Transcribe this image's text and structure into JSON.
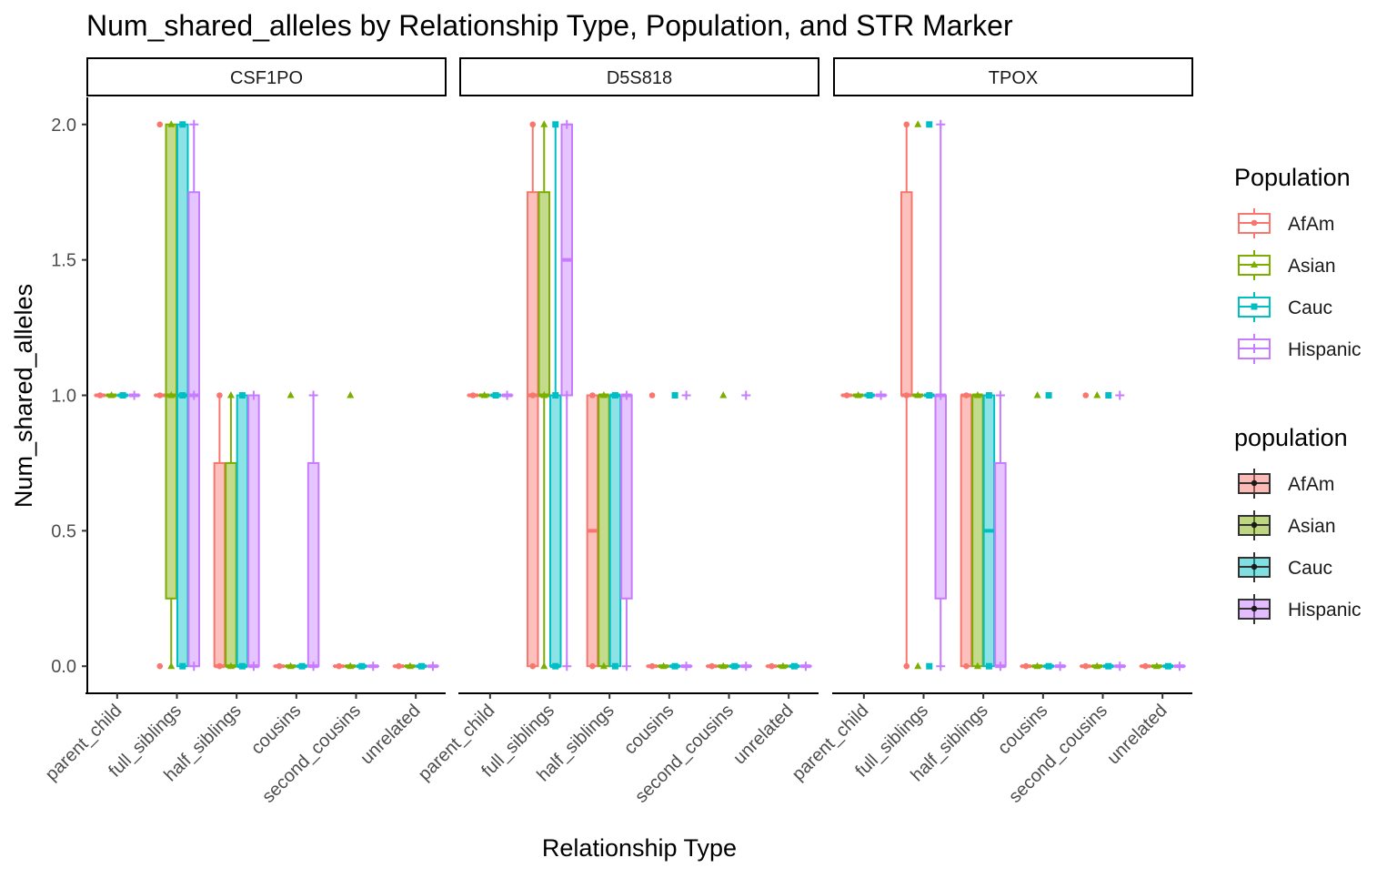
{
  "chart_data": {
    "type": "boxplot",
    "title": "Num_shared_alleles by Relationship Type, Population, and STR Marker",
    "xlabel": "Relationship Type",
    "ylabel": "Num_shared_alleles",
    "ylim": [
      -0.1,
      2.1
    ],
    "yticks": [
      0.0,
      0.5,
      1.0,
      1.5,
      2.0
    ],
    "ytick_labels": [
      "0.0",
      "0.5",
      "1.0",
      "1.5",
      "2.0"
    ],
    "categories": [
      "parent_child",
      "full_siblings",
      "half_siblings",
      "cousins",
      "second_cousins",
      "unrelated"
    ],
    "populations": [
      "AfAm",
      "Asian",
      "Cauc",
      "Hispanic"
    ],
    "colors": {
      "AfAm": "#F8766D",
      "Asian": "#7CAE00",
      "Cauc": "#00BFC4",
      "Hispanic": "#C77CFF"
    },
    "legend_position": "right",
    "legends": [
      {
        "title": "Population",
        "style": "outline",
        "items": [
          "AfAm",
          "Asian",
          "Cauc",
          "Hispanic"
        ]
      },
      {
        "title": "population",
        "style": "filled",
        "items": [
          "AfAm",
          "Asian",
          "Cauc",
          "Hispanic"
        ]
      }
    ],
    "panels": [
      {
        "marker": "CSF1PO",
        "boxes": {
          "parent_child": {
            "AfAm": {
              "q1": 1,
              "median": 1,
              "q3": 1,
              "lo": 1,
              "hi": 1,
              "points": [
                1
              ]
            },
            "Asian": {
              "q1": 1,
              "median": 1,
              "q3": 1,
              "lo": 1,
              "hi": 1,
              "points": [
                1
              ]
            },
            "Cauc": {
              "q1": 1,
              "median": 1,
              "q3": 1,
              "lo": 1,
              "hi": 1,
              "points": [
                1
              ]
            },
            "Hispanic": {
              "q1": 1,
              "median": 1,
              "q3": 1,
              "lo": 1,
              "hi": 1,
              "points": [
                1
              ]
            }
          },
          "full_siblings": {
            "AfAm": {
              "q1": 1,
              "median": 1,
              "q3": 1,
              "lo": 1,
              "hi": 1,
              "points": [
                0,
                1,
                2
              ]
            },
            "Asian": {
              "q1": 0.25,
              "median": 1,
              "q3": 2,
              "lo": 0,
              "hi": 2,
              "points": [
                0,
                1,
                2
              ]
            },
            "Cauc": {
              "q1": 0,
              "median": 1,
              "q3": 2,
              "lo": 0,
              "hi": 2,
              "points": [
                0,
                1,
                2
              ]
            },
            "Hispanic": {
              "q1": 0,
              "median": 1,
              "q3": 1.75,
              "lo": 0,
              "hi": 2,
              "points": [
                0,
                1,
                2
              ]
            }
          },
          "half_siblings": {
            "AfAm": {
              "q1": 0,
              "median": 0,
              "q3": 0.75,
              "lo": 0,
              "hi": 1,
              "points": [
                0,
                1
              ]
            },
            "Asian": {
              "q1": 0,
              "median": 0,
              "q3": 0.75,
              "lo": 0,
              "hi": 1,
              "points": [
                0,
                1
              ]
            },
            "Cauc": {
              "q1": 0,
              "median": 0,
              "q3": 1,
              "lo": 0,
              "hi": 1,
              "points": [
                0,
                1
              ]
            },
            "Hispanic": {
              "q1": 0,
              "median": 0,
              "q3": 1,
              "lo": 0,
              "hi": 1,
              "points": [
                0,
                1
              ]
            }
          },
          "cousins": {
            "AfAm": {
              "q1": 0,
              "median": 0,
              "q3": 0,
              "lo": 0,
              "hi": 0,
              "points": [
                0
              ]
            },
            "Asian": {
              "q1": 0,
              "median": 0,
              "q3": 0,
              "lo": 0,
              "hi": 0,
              "points": [
                0,
                1
              ]
            },
            "Cauc": {
              "q1": 0,
              "median": 0,
              "q3": 0,
              "lo": 0,
              "hi": 0,
              "points": [
                0
              ]
            },
            "Hispanic": {
              "q1": 0,
              "median": 0,
              "q3": 0.75,
              "lo": 0,
              "hi": 1,
              "points": [
                0,
                1
              ]
            }
          },
          "second_cousins": {
            "AfAm": {
              "q1": 0,
              "median": 0,
              "q3": 0,
              "lo": 0,
              "hi": 0,
              "points": [
                0
              ]
            },
            "Asian": {
              "q1": 0,
              "median": 0,
              "q3": 0,
              "lo": 0,
              "hi": 0,
              "points": [
                0,
                1
              ]
            },
            "Cauc": {
              "q1": 0,
              "median": 0,
              "q3": 0,
              "lo": 0,
              "hi": 0,
              "points": [
                0
              ]
            },
            "Hispanic": {
              "q1": 0,
              "median": 0,
              "q3": 0,
              "lo": 0,
              "hi": 0,
              "points": [
                0
              ]
            }
          },
          "unrelated": {
            "AfAm": {
              "q1": 0,
              "median": 0,
              "q3": 0,
              "lo": 0,
              "hi": 0,
              "points": [
                0
              ]
            },
            "Asian": {
              "q1": 0,
              "median": 0,
              "q3": 0,
              "lo": 0,
              "hi": 0,
              "points": [
                0
              ]
            },
            "Cauc": {
              "q1": 0,
              "median": 0,
              "q3": 0,
              "lo": 0,
              "hi": 0,
              "points": [
                0
              ]
            },
            "Hispanic": {
              "q1": 0,
              "median": 0,
              "q3": 0,
              "lo": 0,
              "hi": 0,
              "points": [
                0
              ]
            }
          }
        }
      },
      {
        "marker": "D5S818",
        "boxes": {
          "parent_child": {
            "AfAm": {
              "q1": 1,
              "median": 1,
              "q3": 1,
              "lo": 1,
              "hi": 1,
              "points": [
                1
              ]
            },
            "Asian": {
              "q1": 1,
              "median": 1,
              "q3": 1,
              "lo": 1,
              "hi": 1,
              "points": [
                1
              ]
            },
            "Cauc": {
              "q1": 1,
              "median": 1,
              "q3": 1,
              "lo": 1,
              "hi": 1,
              "points": [
                1
              ]
            },
            "Hispanic": {
              "q1": 1,
              "median": 1,
              "q3": 1,
              "lo": 1,
              "hi": 1,
              "points": [
                1
              ]
            }
          },
          "full_siblings": {
            "AfAm": {
              "q1": 0,
              "median": 1,
              "q3": 1.75,
              "lo": 0,
              "hi": 2,
              "points": [
                0,
                1,
                2
              ]
            },
            "Asian": {
              "q1": 1,
              "median": 1,
              "q3": 1.75,
              "lo": 0,
              "hi": 2,
              "points": [
                0,
                1,
                2
              ]
            },
            "Cauc": {
              "q1": 0,
              "median": 0,
              "q3": 1,
              "lo": 0,
              "hi": 2,
              "points": [
                0,
                1,
                2
              ]
            },
            "Hispanic": {
              "q1": 1,
              "median": 1.5,
              "q3": 2,
              "lo": 0,
              "hi": 2,
              "points": [
                0,
                1,
                2
              ]
            }
          },
          "half_siblings": {
            "AfAm": {
              "q1": 0,
              "median": 0.5,
              "q3": 1,
              "lo": 0,
              "hi": 1,
              "points": [
                0,
                1
              ]
            },
            "Asian": {
              "q1": 0,
              "median": 1,
              "q3": 1,
              "lo": 0,
              "hi": 1,
              "points": [
                0,
                1
              ]
            },
            "Cauc": {
              "q1": 0,
              "median": 1,
              "q3": 1,
              "lo": 0,
              "hi": 1,
              "points": [
                0,
                1
              ]
            },
            "Hispanic": {
              "q1": 0.25,
              "median": 1,
              "q3": 1,
              "lo": 0,
              "hi": 1,
              "points": [
                0,
                1
              ]
            }
          },
          "cousins": {
            "AfAm": {
              "q1": 0,
              "median": 0,
              "q3": 0,
              "lo": 0,
              "hi": 0,
              "points": [
                0,
                1
              ]
            },
            "Asian": {
              "q1": 0,
              "median": 0,
              "q3": 0,
              "lo": 0,
              "hi": 0,
              "points": [
                0
              ]
            },
            "Cauc": {
              "q1": 0,
              "median": 0,
              "q3": 0,
              "lo": 0,
              "hi": 0,
              "points": [
                0,
                1
              ]
            },
            "Hispanic": {
              "q1": 0,
              "median": 0,
              "q3": 0,
              "lo": 0,
              "hi": 0,
              "points": [
                0,
                1
              ]
            }
          },
          "second_cousins": {
            "AfAm": {
              "q1": 0,
              "median": 0,
              "q3": 0,
              "lo": 0,
              "hi": 0,
              "points": [
                0
              ]
            },
            "Asian": {
              "q1": 0,
              "median": 0,
              "q3": 0,
              "lo": 0,
              "hi": 0,
              "points": [
                0,
                1
              ]
            },
            "Cauc": {
              "q1": 0,
              "median": 0,
              "q3": 0,
              "lo": 0,
              "hi": 0,
              "points": [
                0
              ]
            },
            "Hispanic": {
              "q1": 0,
              "median": 0,
              "q3": 0,
              "lo": 0,
              "hi": 0,
              "points": [
                0,
                1
              ]
            }
          },
          "unrelated": {
            "AfAm": {
              "q1": 0,
              "median": 0,
              "q3": 0,
              "lo": 0,
              "hi": 0,
              "points": [
                0
              ]
            },
            "Asian": {
              "q1": 0,
              "median": 0,
              "q3": 0,
              "lo": 0,
              "hi": 0,
              "points": [
                0
              ]
            },
            "Cauc": {
              "q1": 0,
              "median": 0,
              "q3": 0,
              "lo": 0,
              "hi": 0,
              "points": [
                0
              ]
            },
            "Hispanic": {
              "q1": 0,
              "median": 0,
              "q3": 0,
              "lo": 0,
              "hi": 0,
              "points": [
                0
              ]
            }
          }
        }
      },
      {
        "marker": "TPOX",
        "boxes": {
          "parent_child": {
            "AfAm": {
              "q1": 1,
              "median": 1,
              "q3": 1,
              "lo": 1,
              "hi": 1,
              "points": [
                1
              ]
            },
            "Asian": {
              "q1": 1,
              "median": 1,
              "q3": 1,
              "lo": 1,
              "hi": 1,
              "points": [
                1
              ]
            },
            "Cauc": {
              "q1": 1,
              "median": 1,
              "q3": 1,
              "lo": 1,
              "hi": 1,
              "points": [
                1
              ]
            },
            "Hispanic": {
              "q1": 1,
              "median": 1,
              "q3": 1,
              "lo": 1,
              "hi": 1,
              "points": [
                1
              ]
            }
          },
          "full_siblings": {
            "AfAm": {
              "q1": 1,
              "median": 1,
              "q3": 1.75,
              "lo": 0,
              "hi": 2,
              "points": [
                0,
                1,
                2
              ]
            },
            "Asian": {
              "q1": 1,
              "median": 1,
              "q3": 1,
              "lo": 1,
              "hi": 1,
              "points": [
                0,
                1,
                2
              ]
            },
            "Cauc": {
              "q1": 1,
              "median": 1,
              "q3": 1,
              "lo": 1,
              "hi": 1,
              "points": [
                0,
                1,
                2
              ]
            },
            "Hispanic": {
              "q1": 0.25,
              "median": 1,
              "q3": 1,
              "lo": 0,
              "hi": 2,
              "points": [
                0,
                1,
                2
              ]
            }
          },
          "half_siblings": {
            "AfAm": {
              "q1": 0,
              "median": 1,
              "q3": 1,
              "lo": 0,
              "hi": 1,
              "points": [
                0,
                1
              ]
            },
            "Asian": {
              "q1": 0,
              "median": 1,
              "q3": 1,
              "lo": 0,
              "hi": 1,
              "points": [
                0,
                1
              ]
            },
            "Cauc": {
              "q1": 0,
              "median": 0.5,
              "q3": 1,
              "lo": 0,
              "hi": 1,
              "points": [
                0,
                1
              ]
            },
            "Hispanic": {
              "q1": 0,
              "median": 0,
              "q3": 0.75,
              "lo": 0,
              "hi": 1,
              "points": [
                0,
                1
              ]
            }
          },
          "cousins": {
            "AfAm": {
              "q1": 0,
              "median": 0,
              "q3": 0,
              "lo": 0,
              "hi": 0,
              "points": [
                0
              ]
            },
            "Asian": {
              "q1": 0,
              "median": 0,
              "q3": 0,
              "lo": 0,
              "hi": 0,
              "points": [
                0,
                1
              ]
            },
            "Cauc": {
              "q1": 0,
              "median": 0,
              "q3": 0,
              "lo": 0,
              "hi": 0,
              "points": [
                0,
                1
              ]
            },
            "Hispanic": {
              "q1": 0,
              "median": 0,
              "q3": 0,
              "lo": 0,
              "hi": 0,
              "points": [
                0
              ]
            }
          },
          "second_cousins": {
            "AfAm": {
              "q1": 0,
              "median": 0,
              "q3": 0,
              "lo": 0,
              "hi": 0,
              "points": [
                0,
                1
              ]
            },
            "Asian": {
              "q1": 0,
              "median": 0,
              "q3": 0,
              "lo": 0,
              "hi": 0,
              "points": [
                0,
                1
              ]
            },
            "Cauc": {
              "q1": 0,
              "median": 0,
              "q3": 0,
              "lo": 0,
              "hi": 0,
              "points": [
                0,
                1
              ]
            },
            "Hispanic": {
              "q1": 0,
              "median": 0,
              "q3": 0,
              "lo": 0,
              "hi": 0,
              "points": [
                0,
                1
              ]
            }
          },
          "unrelated": {
            "AfAm": {
              "q1": 0,
              "median": 0,
              "q3": 0,
              "lo": 0,
              "hi": 0,
              "points": [
                0
              ]
            },
            "Asian": {
              "q1": 0,
              "median": 0,
              "q3": 0,
              "lo": 0,
              "hi": 0,
              "points": [
                0
              ]
            },
            "Cauc": {
              "q1": 0,
              "median": 0,
              "q3": 0,
              "lo": 0,
              "hi": 0,
              "points": [
                0
              ]
            },
            "Hispanic": {
              "q1": 0,
              "median": 0,
              "q3": 0,
              "lo": 0,
              "hi": 0,
              "points": [
                0
              ]
            }
          }
        }
      }
    ]
  }
}
